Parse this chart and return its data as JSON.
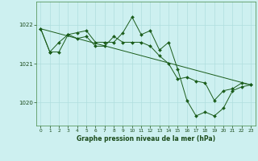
{
  "title": "Graphe pression niveau de la mer (hPa)",
  "background_color": "#cdf0f0",
  "grid_color": "#b0dede",
  "line_color": "#1a5c1a",
  "marker_color": "#1a5c1a",
  "xlim": [
    -0.5,
    23.5
  ],
  "ylim": [
    1019.4,
    1022.6
  ],
  "yticks": [
    1020,
    1021,
    1022
  ],
  "xticks": [
    0,
    1,
    2,
    3,
    4,
    5,
    6,
    7,
    8,
    9,
    10,
    11,
    12,
    13,
    14,
    15,
    16,
    17,
    18,
    19,
    20,
    21,
    22,
    23
  ],
  "series1": {
    "x": [
      0,
      1,
      2,
      3,
      4,
      5,
      6,
      7,
      8,
      9,
      10,
      11,
      12,
      13,
      14,
      15,
      16,
      17,
      18,
      19,
      20,
      21,
      22,
      23
    ],
    "y": [
      1021.9,
      1021.3,
      1021.3,
      1021.75,
      1021.8,
      1021.85,
      1021.55,
      1021.55,
      1021.55,
      1021.8,
      1022.2,
      1021.75,
      1021.85,
      1021.35,
      1021.55,
      1020.85,
      1020.05,
      1019.65,
      1019.75,
      1019.65,
      1019.85,
      1020.3,
      1020.4,
      1020.45
    ]
  },
  "series2": {
    "x": [
      0,
      1,
      2,
      3,
      4,
      5,
      6,
      7,
      8,
      9,
      10,
      11,
      12,
      13,
      14,
      15,
      16,
      17,
      18,
      19,
      20,
      21,
      22,
      23
    ],
    "y": [
      1021.9,
      1021.3,
      1021.55,
      1021.75,
      1021.65,
      1021.7,
      1021.45,
      1021.45,
      1021.7,
      1021.55,
      1021.55,
      1021.55,
      1021.45,
      1021.2,
      1021.0,
      1020.6,
      1020.65,
      1020.55,
      1020.5,
      1020.05,
      1020.3,
      1020.35,
      1020.5,
      1020.45
    ]
  },
  "series3": {
    "x": [
      0,
      23
    ],
    "y": [
      1021.9,
      1020.45
    ]
  }
}
